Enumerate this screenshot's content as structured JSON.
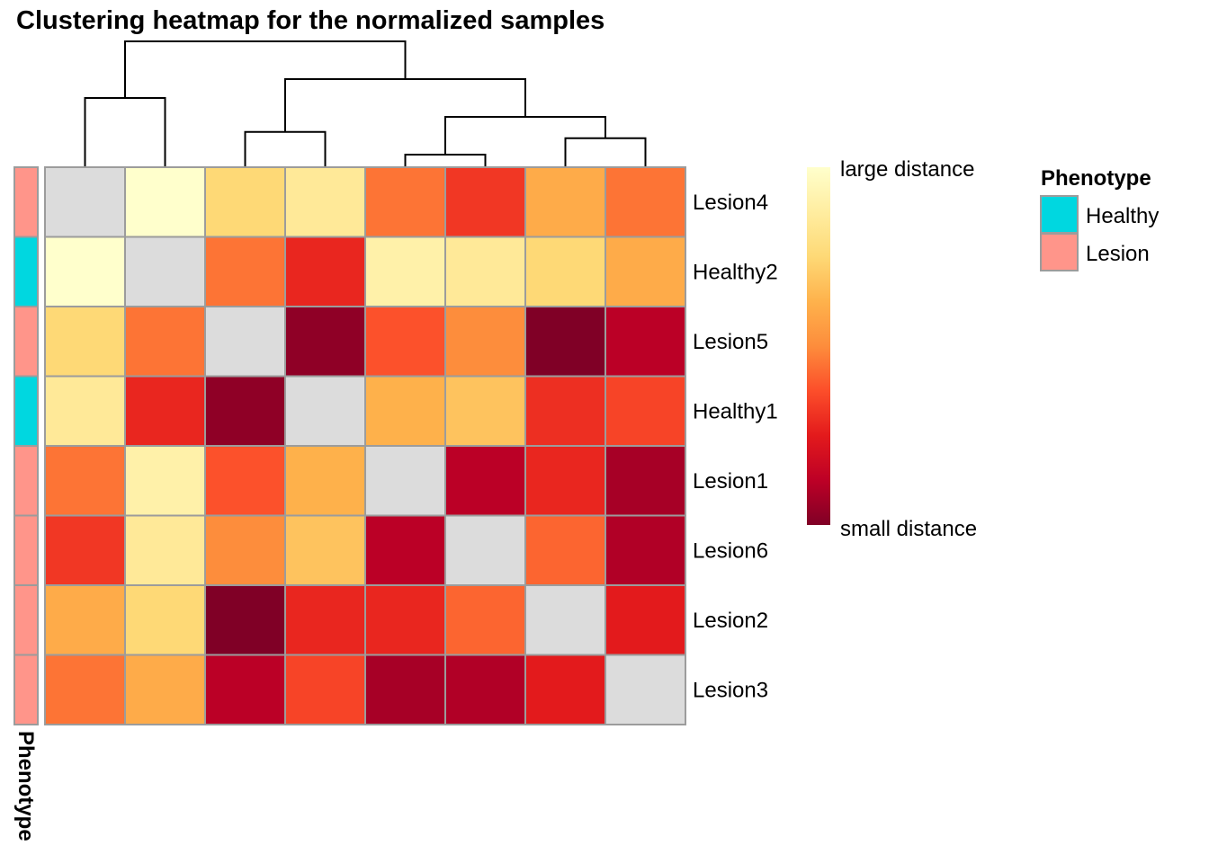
{
  "chart_data": {
    "type": "heatmap",
    "title": "Clustering heatmap for the normalized samples",
    "rows": [
      "Lesion4",
      "Healthy2",
      "Lesion5",
      "Healthy1",
      "Lesion1",
      "Lesion6",
      "Lesion2",
      "Lesion3"
    ],
    "columns": [
      "Lesion4",
      "Healthy2",
      "Lesion5",
      "Healthy1",
      "Lesion1",
      "Lesion6",
      "Lesion2",
      "Lesion3"
    ],
    "values": [
      [
        null,
        1.0,
        0.75,
        0.85,
        0.45,
        0.32,
        0.6,
        0.45
      ],
      [
        1.0,
        null,
        0.45,
        0.28,
        0.9,
        0.85,
        0.75,
        0.6
      ],
      [
        0.75,
        0.45,
        null,
        0.03,
        0.38,
        0.5,
        0.0,
        0.12
      ],
      [
        0.85,
        0.28,
        0.03,
        null,
        0.62,
        0.68,
        0.3,
        0.35
      ],
      [
        0.45,
        0.9,
        0.38,
        0.62,
        null,
        0.12,
        0.28,
        0.08
      ],
      [
        0.32,
        0.85,
        0.5,
        0.68,
        0.12,
        null,
        0.42,
        0.1
      ],
      [
        0.6,
        0.75,
        0.0,
        0.28,
        0.28,
        0.42,
        null,
        0.25
      ],
      [
        0.45,
        0.6,
        0.12,
        0.35,
        0.08,
        0.1,
        0.25,
        null
      ]
    ],
    "diagonal_color": "#dcdcdc",
    "colorscale": [
      "#800026",
      "#bd0026",
      "#e31a1c",
      "#fc4e2a",
      "#fd8d3c",
      "#feb24c",
      "#fed976",
      "#ffeda0",
      "#ffffcc"
    ],
    "colorbar": {
      "high_label": "large distance",
      "low_label": "small distance"
    },
    "annotation": {
      "name": "Phenotype",
      "values": [
        "Lesion",
        "Healthy",
        "Lesion",
        "Healthy",
        "Lesion",
        "Lesion",
        "Lesion",
        "Lesion"
      ]
    },
    "legend": {
      "title": "Phenotype",
      "items": [
        {
          "label": "Healthy",
          "color": "#00d7e0"
        },
        {
          "label": "Lesion",
          "color": "#ff958a"
        }
      ]
    },
    "dendrogram": {
      "merges": [
        {
          "left": 4,
          "right": 5,
          "height": 0.1
        },
        {
          "left": 6,
          "right": 7,
          "height": 0.23
        },
        {
          "left": 2,
          "right": 3,
          "height": 0.28
        },
        {
          "left": 4.5,
          "right": 6.5,
          "height": 0.4
        },
        {
          "left": 0,
          "right": 1,
          "height": 0.55
        },
        {
          "left": 2.5,
          "right": 5.5,
          "height": 0.7
        },
        {
          "left": 0.5,
          "right": 4,
          "height": 1.0
        }
      ]
    }
  }
}
